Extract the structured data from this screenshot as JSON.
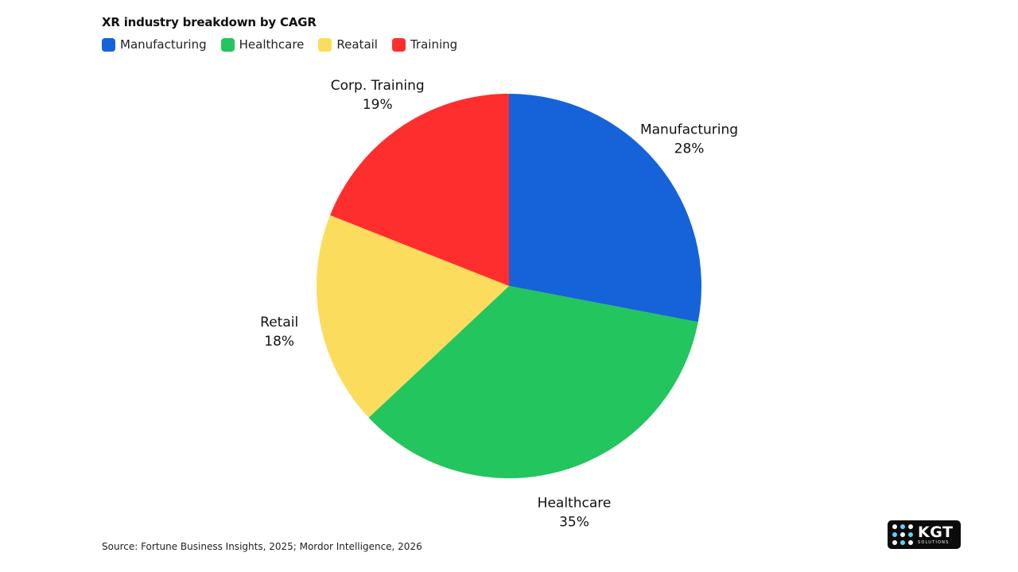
{
  "chart_data": {
    "type": "pie",
    "title": "XR industry breakdown by CAGR",
    "legend": [
      {
        "name": "Manufacturing",
        "color": "#1663D9"
      },
      {
        "name": "Healthcare",
        "color": "#23C55E"
      },
      {
        "name": "Reatail",
        "color": "#FCDC5C"
      },
      {
        "name": "Training",
        "color": "#FF2E2E"
      }
    ],
    "slices": [
      {
        "label": "Manufacturing",
        "value": 28,
        "value_label": "28%",
        "color": "#1663D9"
      },
      {
        "label": "Healthcare",
        "value": 35,
        "value_label": "35%",
        "color": "#23C55E"
      },
      {
        "label": "Retail",
        "value": 18,
        "value_label": "18%",
        "color": "#FCDC5C"
      },
      {
        "label": "Corp. Training",
        "value": 19,
        "value_label": "19%",
        "color": "#FF2E2E"
      }
    ],
    "legend_position": "top-left",
    "start_angle": "12 o'clock",
    "direction": "clockwise"
  },
  "footer": {
    "source": "Source: Fortune Business Insights, 2025; Mordor Intelligence, 2026"
  },
  "logo": {
    "name": "KGT",
    "tagline": "SOLUTIONS"
  }
}
